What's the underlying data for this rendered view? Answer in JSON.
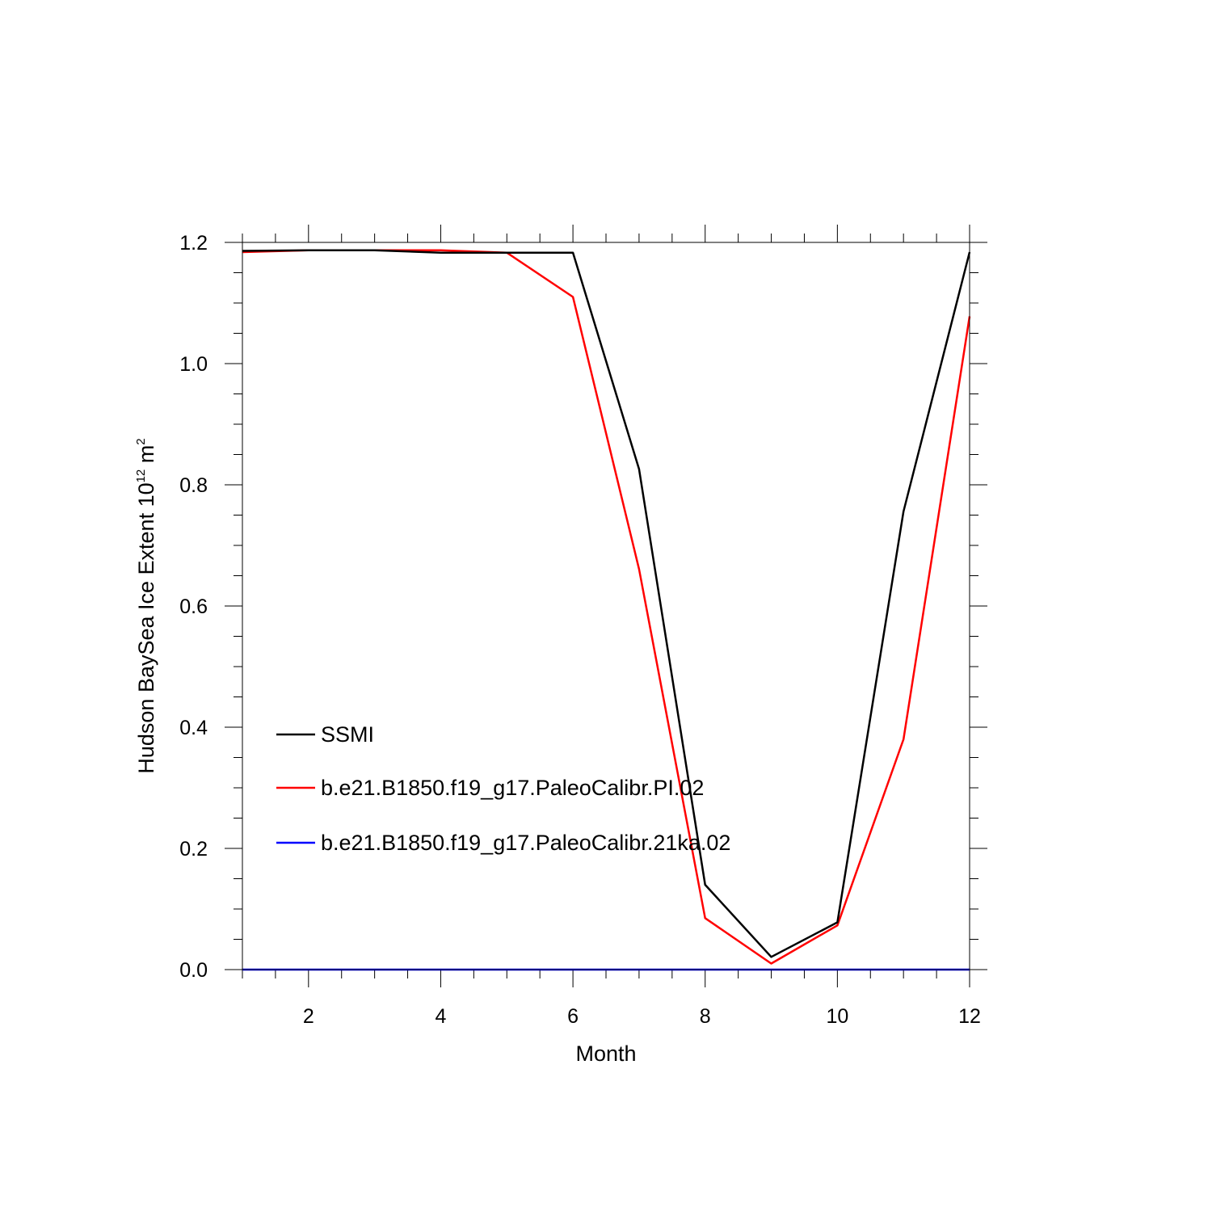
{
  "chart_data": {
    "type": "line",
    "xlabel": "Month",
    "ylabel": {
      "main": "Hudson BaySea Ice Extent 10",
      "exp": "12",
      "unit": " m",
      "unit_exp": "2"
    },
    "xlim": [
      1,
      12
    ],
    "ylim": [
      0,
      1.2
    ],
    "x_ticks": [
      2,
      4,
      6,
      8,
      10,
      12
    ],
    "x_tick_labels": [
      "2",
      "4",
      "6",
      "8",
      "10",
      "12"
    ],
    "y_ticks": [
      0,
      0.2,
      0.4,
      0.6,
      0.8,
      1.0,
      1.2
    ],
    "y_tick_labels": [
      "0.0",
      "0.2",
      "0.4",
      "0.6",
      "0.8",
      "1.0",
      "1.2"
    ],
    "grid": false,
    "legend_position": "lower-left",
    "x": [
      1,
      2,
      3,
      4,
      5,
      6,
      7,
      8,
      9,
      10,
      11,
      12
    ],
    "series": [
      {
        "name": "SSMI",
        "color": "#000000",
        "values": [
          1.186,
          1.187,
          1.187,
          1.183,
          1.183,
          1.183,
          0.826,
          0.14,
          0.021,
          0.078,
          0.756,
          1.184
        ]
      },
      {
        "name": "b.e21.B1850.f19_g17.PaleoCalibr.PI.02",
        "color": "#ff0000",
        "values": [
          1.184,
          1.187,
          1.187,
          1.187,
          1.183,
          1.11,
          0.661,
          0.085,
          0.01,
          0.073,
          0.38,
          1.078
        ]
      },
      {
        "name": "b.e21.B1850.f19_g17.PaleoCalibr.21ka.02",
        "color": "#0000ff",
        "values": [
          0,
          0,
          0,
          0,
          0,
          0,
          0,
          0,
          0,
          0,
          0,
          0
        ]
      }
    ]
  }
}
